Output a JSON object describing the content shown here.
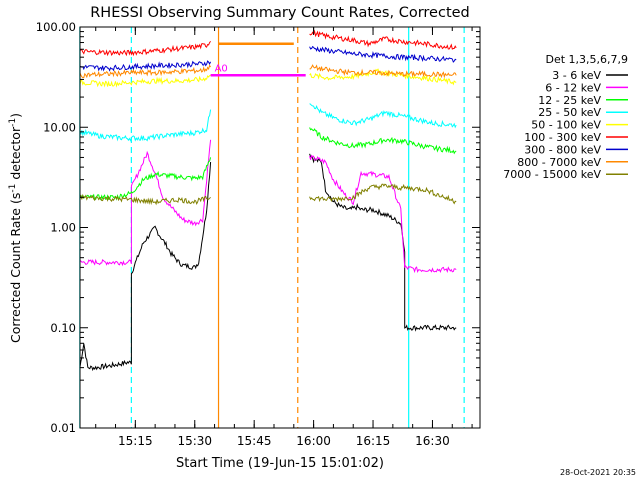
{
  "chart_data": {
    "type": "line",
    "title": "RHESSI Observing Summary Count Rates, Corrected",
    "xlabel": "Start Time (19-Jun-15 15:01:02)",
    "ylabel_main": "Corrected Count Rate (s",
    "ylabel_sup1": "-1",
    "ylabel_mid": " detector",
    "ylabel_sup2": "-1",
    "ylabel_end": ")",
    "yscale": "log",
    "ylim": [
      0.01,
      100
    ],
    "xlim": [
      "15:01:02",
      "16:42:00"
    ],
    "xticks": [
      "15:15",
      "15:30",
      "15:45",
      "16:00",
      "16:15",
      "16:30"
    ],
    "yticks": [
      "0.01",
      "0.10",
      "1.00",
      "10.00",
      "100.00"
    ],
    "legend_title": "Det 1,3,5,6,7,9",
    "legend_position": "right",
    "annotation": "A0",
    "timestamp": "28-Oct-2021 20:35",
    "series": [
      {
        "name": "3 - 6 keV",
        "color": "#000000",
        "segments": [
          {
            "x": [
              "15:01",
              "15:02",
              "15:03",
              "15:05",
              "15:09",
              "15:13",
              "15:14",
              "15:14",
              "15:17",
              "15:20",
              "15:21",
              "15:23",
              "15:24",
              "15:26",
              "15:27",
              "15:30",
              "15:31",
              "15:33",
              "15:34"
            ],
            "y": [
              0.04,
              0.07,
              0.04,
              0.04,
              0.042,
              0.045,
              0.045,
              0.35,
              0.7,
              1.0,
              0.85,
              0.65,
              0.55,
              0.45,
              0.42,
              0.4,
              0.45,
              1.5,
              4.5
            ]
          },
          {
            "x": [
              "15:59",
              "16:00",
              "16:02",
              "16:03",
              "16:05",
              "16:07",
              "16:09",
              "16:11",
              "16:12",
              "16:15",
              "16:19",
              "16:22",
              "16:23",
              "16:23",
              "16:36"
            ],
            "y": [
              5.5,
              4.8,
              4.5,
              2.4,
              1.8,
              1.6,
              1.5,
              1.6,
              1.5,
              1.5,
              1.3,
              1.1,
              0.6,
              0.1,
              0.1
            ]
          }
        ]
      },
      {
        "name": "6 - 12 keV",
        "color": "#ff00ff",
        "segments": [
          {
            "x": [
              "15:01",
              "15:06",
              "15:10",
              "15:13",
              "15:14",
              "15:14",
              "15:17",
              "15:18",
              "15:20",
              "15:22",
              "15:24",
              "15:27",
              "15:30",
              "15:32",
              "15:34"
            ],
            "y": [
              0.45,
              0.45,
              0.45,
              0.45,
              0.45,
              2.5,
              4.5,
              5.5,
              3.5,
              2.0,
              1.6,
              1.2,
              1.1,
              1.2,
              7.5
            ]
          },
          {
            "x": [
              "15:59",
              "16:01",
              "16:03",
              "16:05",
              "16:08",
              "16:10",
              "16:12",
              "16:15",
              "16:19",
              "16:22",
              "16:23",
              "16:26",
              "16:36"
            ],
            "y": [
              5,
              4.8,
              4.5,
              3,
              2.1,
              1.8,
              3.5,
              3.4,
              3.2,
              1.5,
              0.4,
              0.38,
              0.38
            ]
          }
        ]
      },
      {
        "name": "12 - 25 keV",
        "color": "#00ff00",
        "segments": [
          {
            "x": [
              "15:01",
              "15:10",
              "15:14",
              "15:17",
              "15:20",
              "15:23",
              "15:26",
              "15:30",
              "15:32",
              "15:34"
            ],
            "y": [
              2.0,
              2.0,
              2.2,
              3.0,
              3.4,
              3.3,
              3.2,
              3.1,
              3.2,
              5.0
            ]
          },
          {
            "x": [
              "15:59",
              "16:02",
              "16:06",
              "16:10",
              "16:14",
              "16:18",
              "16:22",
              "16:26",
              "16:30",
              "16:36"
            ],
            "y": [
              10,
              8,
              7,
              6.5,
              6.8,
              7.5,
              7.3,
              6.7,
              6.2,
              5.8
            ]
          }
        ]
      },
      {
        "name": "25 - 50 keV",
        "color": "#00ffff",
        "segments": [
          {
            "x": [
              "15:01",
              "15:06",
              "15:12",
              "15:18",
              "15:24",
              "15:30",
              "15:33",
              "15:34"
            ],
            "y": [
              9.0,
              8.2,
              7.8,
              7.8,
              8.4,
              8.8,
              9.5,
              15
            ]
          },
          {
            "x": [
              "15:59",
              "16:02",
              "16:06",
              "16:10",
              "16:14",
              "16:18",
              "16:22",
              "16:26",
              "16:30",
              "16:36"
            ],
            "y": [
              18,
              14,
              12,
              11,
              12,
              14,
              13,
              12,
              11,
              10.5
            ]
          }
        ]
      },
      {
        "name": "50 - 100 keV",
        "color": "#ffff00",
        "segments": [
          {
            "x": [
              "15:01",
              "15:08",
              "15:14",
              "15:20",
              "15:26",
              "15:32",
              "15:34"
            ],
            "y": [
              28,
              27,
              28,
              29,
              29,
              30,
              33
            ]
          },
          {
            "x": [
              "15:59",
              "16:04",
              "16:10",
              "16:16",
              "16:22",
              "16:28",
              "16:36"
            ],
            "y": [
              33,
              31,
              32,
              36,
              33,
              31,
              28
            ]
          }
        ]
      },
      {
        "name": "100 - 300 keV",
        "color": "#ff0000",
        "segments": [
          {
            "x": [
              "15:01",
              "15:06",
              "15:12",
              "15:18",
              "15:24",
              "15:30",
              "15:33",
              "15:34"
            ],
            "y": [
              57,
              56,
              55,
              57,
              60,
              63,
              66,
              72
            ]
          },
          {
            "x": [
              "15:59",
              "16:04",
              "16:10",
              "16:14",
              "16:18",
              "16:22",
              "16:28",
              "16:36"
            ],
            "y": [
              88,
              80,
              74,
              68,
              76,
              72,
              68,
              62
            ]
          }
        ]
      },
      {
        "name": "300 - 800 keV",
        "color": "#0000cc",
        "segments": [
          {
            "x": [
              "15:01",
              "15:08",
              "15:14",
              "15:20",
              "15:26",
              "15:32",
              "15:34"
            ],
            "y": [
              40,
              39,
              40,
              41,
              42,
              43,
              45
            ]
          },
          {
            "x": [
              "15:59",
              "16:04",
              "16:10",
              "16:16",
              "16:22",
              "16:28",
              "16:36"
            ],
            "y": [
              62,
              58,
              54,
              52,
              50,
              49,
              47
            ]
          }
        ]
      },
      {
        "name": "800 - 7000 keV",
        "color": "#ff8800",
        "segments": [
          {
            "x": [
              "15:01",
              "15:08",
              "15:14",
              "15:20",
              "15:26",
              "15:32",
              "15:34"
            ],
            "y": [
              33,
              34,
              35,
              35,
              36,
              37,
              40
            ]
          },
          {
            "x": [
              "15:59",
              "16:04",
              "16:10",
              "16:16",
              "16:22",
              "16:28",
              "16:36"
            ],
            "y": [
              40,
              37,
              35,
              35,
              34,
              34,
              33
            ]
          }
        ]
      },
      {
        "name": "7000 - 15000 keV",
        "color": "#808000",
        "segments": [
          {
            "x": [
              "15:01",
              "15:14",
              "15:20",
              "15:26",
              "15:30",
              "15:34"
            ],
            "y": [
              2.0,
              1.9,
              1.8,
              1.9,
              1.8,
              2.0
            ]
          },
          {
            "x": [
              "15:59",
              "16:04",
              "16:10",
              "16:14",
              "16:18",
              "16:22",
              "16:28",
              "16:36"
            ],
            "y": [
              2.0,
              1.9,
              2.0,
              2.5,
              2.6,
              2.5,
              2.4,
              1.8
            ]
          }
        ]
      }
    ],
    "overlays": [
      {
        "name": "attenuator-state-line",
        "color": "#ff00ff",
        "x": [
          "15:34",
          "15:58"
        ],
        "y": [
          33,
          33
        ]
      },
      {
        "name": "saa-flag-line",
        "color": "#ff8800",
        "x": [
          "15:36",
          "15:55"
        ],
        "y": [
          68,
          68
        ]
      }
    ],
    "vlines": [
      {
        "name": "start-marker",
        "x": "15:01",
        "color": "#00ffff",
        "style": "solid"
      },
      {
        "name": "night-marker",
        "x": "15:14",
        "color": "#00ffff",
        "style": "dashed"
      },
      {
        "name": "saa-start",
        "x": "15:36",
        "color": "#ff8800",
        "style": "solid"
      },
      {
        "name": "saa-end",
        "x": "15:56",
        "color": "#ff8800",
        "style": "dashed"
      },
      {
        "name": "day-marker",
        "x": "16:24",
        "color": "#00ffff",
        "style": "solid"
      },
      {
        "name": "end-marker",
        "x": "16:38",
        "color": "#00ffff",
        "style": "dashed"
      }
    ]
  }
}
